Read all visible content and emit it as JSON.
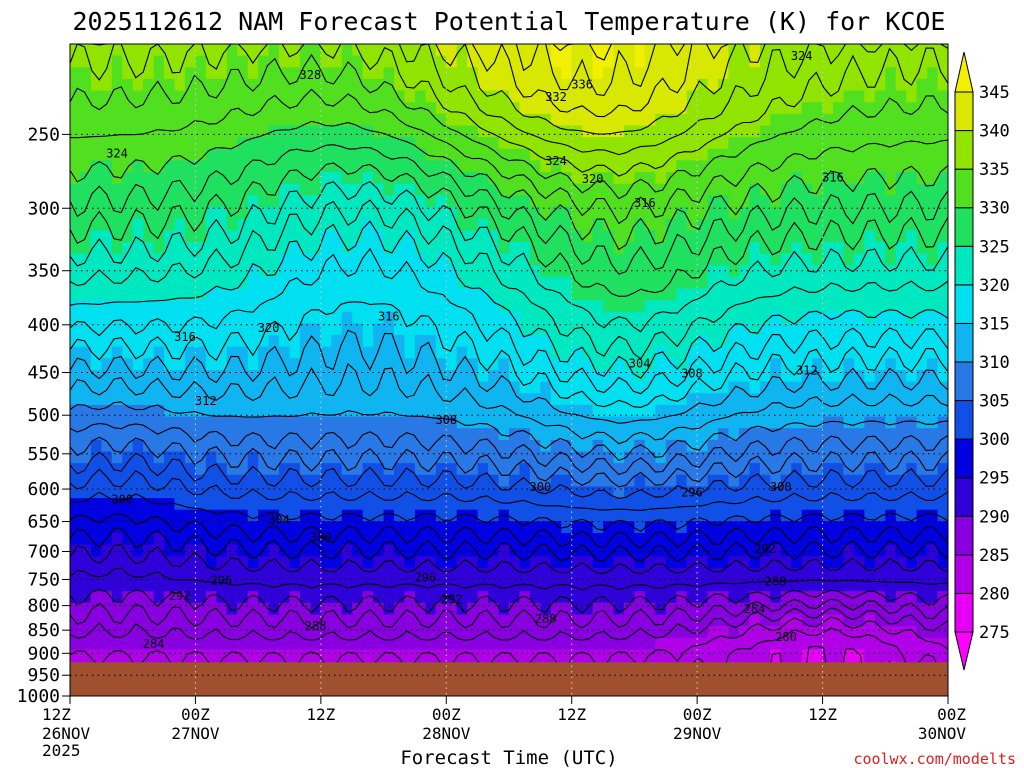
{
  "chart_data": {
    "type": "heatmap",
    "title": "2025112612 NAM Forecast Potential Temperature (K) for KCOE",
    "xlabel": "Forecast Time (UTC)",
    "ylabel": "",
    "credit": "coolwx.com/modelts",
    "y_axis": {
      "scale": "log",
      "range": [
        1000,
        200
      ],
      "ticks": [
        250,
        300,
        350,
        400,
        450,
        500,
        550,
        600,
        650,
        700,
        750,
        800,
        850,
        900,
        950,
        1000
      ]
    },
    "x_axis": {
      "range_hours": [
        0,
        84
      ],
      "ticks": [
        {
          "hour": 0,
          "line1": "12Z",
          "line2": "26NOV",
          "line3": "2025"
        },
        {
          "hour": 12,
          "line1": "00Z",
          "line2": "27NOV",
          "line3": ""
        },
        {
          "hour": 24,
          "line1": "12Z",
          "line2": "",
          "line3": ""
        },
        {
          "hour": 36,
          "line1": "00Z",
          "line2": "28NOV",
          "line3": ""
        },
        {
          "hour": 48,
          "line1": "12Z",
          "line2": "",
          "line3": ""
        },
        {
          "hour": 60,
          "line1": "00Z",
          "line2": "29NOV",
          "line3": ""
        },
        {
          "hour": 72,
          "line1": "12Z",
          "line2": "",
          "line3": ""
        },
        {
          "hour": 84,
          "line1": "00Z",
          "line2": "30NOV",
          "line3": ""
        }
      ]
    },
    "colorbar": {
      "levels": [
        275,
        280,
        285,
        290,
        295,
        300,
        305,
        310,
        315,
        320,
        325,
        330,
        335,
        340,
        345
      ],
      "colors": [
        "#ff00ff",
        "#e600f5",
        "#b000e8",
        "#8800e0",
        "#3000d8",
        "#0000e0",
        "#1050e6",
        "#2878e6",
        "#10b4f0",
        "#00e0f0",
        "#00e8c0",
        "#20e060",
        "#50e020",
        "#90e400",
        "#d8e800",
        "#f0f000"
      ]
    },
    "terrain_color": "#a0502e",
    "surface_pressure": 920,
    "contour_labels": [
      {
        "v": "328",
        "h": 23,
        "p": 216
      },
      {
        "v": "324",
        "h": 4.5,
        "p": 262
      },
      {
        "v": "320",
        "h": 19,
        "p": 403
      },
      {
        "v": "316",
        "h": 11,
        "p": 412
      },
      {
        "v": "316",
        "h": 30.5,
        "p": 392
      },
      {
        "v": "312",
        "h": 13,
        "p": 483
      },
      {
        "v": "308",
        "h": 36,
        "p": 506
      },
      {
        "v": "304",
        "h": 20,
        "p": 648
      },
      {
        "v": "300",
        "h": 5,
        "p": 616
      },
      {
        "v": "300",
        "h": 24,
        "p": 676
      },
      {
        "v": "296",
        "h": 14.5,
        "p": 752
      },
      {
        "v": "296",
        "h": 34,
        "p": 746
      },
      {
        "v": "292",
        "h": 10.5,
        "p": 781
      },
      {
        "v": "292",
        "h": 36.5,
        "p": 788
      },
      {
        "v": "288",
        "h": 23.5,
        "p": 841
      },
      {
        "v": "288",
        "h": 45.5,
        "p": 827
      },
      {
        "v": "284",
        "h": 8,
        "p": 880
      },
      {
        "v": "332",
        "h": 46.5,
        "p": 228
      },
      {
        "v": "336",
        "h": 49,
        "p": 221
      },
      {
        "v": "324",
        "h": 46.5,
        "p": 267
      },
      {
        "v": "320",
        "h": 50,
        "p": 279
      },
      {
        "v": "316",
        "h": 55,
        "p": 296
      },
      {
        "v": "304",
        "h": 54.5,
        "p": 440
      },
      {
        "v": "308",
        "h": 59.5,
        "p": 451
      },
      {
        "v": "300",
        "h": 45,
        "p": 597
      },
      {
        "v": "296",
        "h": 59.5,
        "p": 605
      },
      {
        "v": "300",
        "h": 68,
        "p": 597
      },
      {
        "v": "292",
        "h": 66.5,
        "p": 696
      },
      {
        "v": "288",
        "h": 67.5,
        "p": 754
      },
      {
        "v": "284",
        "h": 65.5,
        "p": 807
      },
      {
        "v": "280",
        "h": 68.5,
        "p": 865
      },
      {
        "v": "312",
        "h": 70.5,
        "p": 448
      },
      {
        "v": "316",
        "h": 73,
        "p": 278
      },
      {
        "v": "324",
        "h": 70,
        "p": 206
      }
    ]
  }
}
